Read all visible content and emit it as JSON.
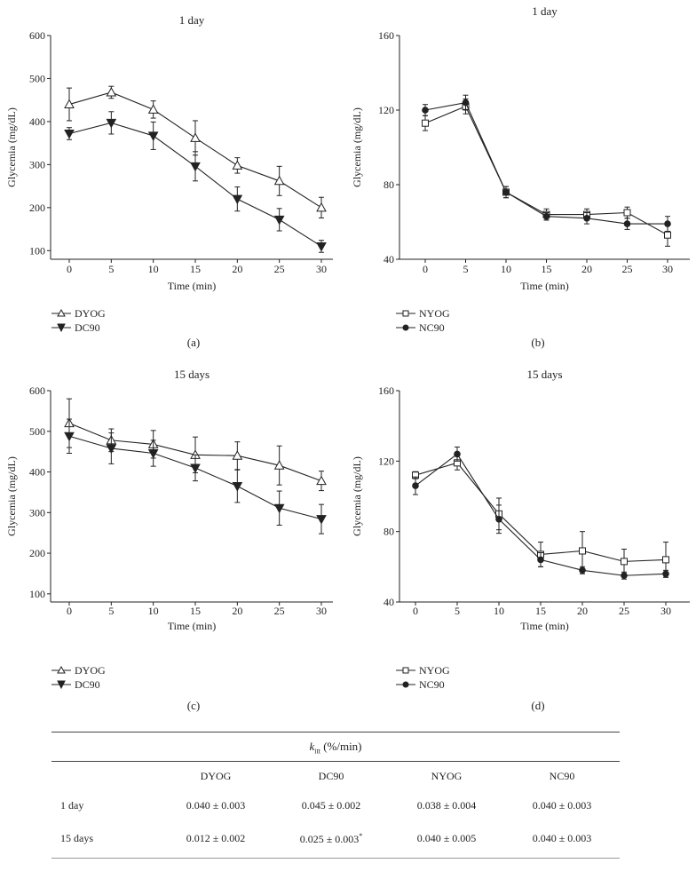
{
  "charts": [
    {
      "id": "a",
      "panel_label": "(a)",
      "chart_data": {
        "type": "line",
        "title": "1 day",
        "xlabel": "Time (min)",
        "ylabel": "Glycemia (mg/dL)",
        "x": [
          0,
          5,
          10,
          15,
          20,
          25,
          30
        ],
        "xticks": [
          "0",
          "5",
          "10",
          "15",
          "20",
          "25",
          "30"
        ],
        "ylim": [
          80,
          600
        ],
        "yticks": [
          100,
          200,
          300,
          400,
          500,
          600
        ],
        "ytick_labels": [
          "100",
          "200",
          "300",
          "400",
          "500",
          "600"
        ],
        "series": [
          {
            "name": "DYOG",
            "marker": "open-triangle",
            "values": [
              440,
              468,
              428,
              362,
              298,
              262,
              200
            ],
            "errors": [
              38,
              14,
              20,
              40,
              18,
              34,
              24
            ]
          },
          {
            "name": "DC90",
            "marker": "filled-down-triangle",
            "values": [
              372,
              397,
              367,
              296,
              220,
              172,
              110
            ],
            "errors": [
              14,
              26,
              32,
              34,
              28,
              26,
              14
            ]
          }
        ]
      }
    },
    {
      "id": "b",
      "panel_label": "(b)",
      "chart_data": {
        "type": "line",
        "title": "1 day",
        "xlabel": "Time (min)",
        "ylabel": "Glycemia (mg/dL)",
        "x": [
          0,
          5,
          10,
          15,
          20,
          25,
          30
        ],
        "xticks": [
          "0",
          "5",
          "10",
          "15",
          "20",
          "25",
          "30"
        ],
        "ylim": [
          40,
          160
        ],
        "yticks": [
          40,
          80,
          120,
          160
        ],
        "ytick_labels": [
          "40",
          "80",
          "120",
          "160"
        ],
        "series": [
          {
            "name": "NYOG",
            "marker": "open-square",
            "values": [
              113,
              122,
              76,
              64,
              64,
              65,
              53
            ],
            "errors": [
              4,
              4,
              3,
              3,
              3,
              3,
              6
            ]
          },
          {
            "name": "NC90",
            "marker": "filled-circle",
            "values": [
              120,
              124,
              76,
              63,
              62,
              59,
              59
            ],
            "errors": [
              3,
              4,
              3,
              2,
              3,
              3,
              4
            ]
          }
        ]
      }
    },
    {
      "id": "c",
      "panel_label": "(c)",
      "chart_data": {
        "type": "line",
        "title": "15 days",
        "xlabel": "Time (min)",
        "ylabel": "Glycemia (mg/dL)",
        "x": [
          0,
          5,
          10,
          15,
          20,
          25,
          30
        ],
        "xticks": [
          "0",
          "5",
          "10",
          "15",
          "20",
          "25",
          "30"
        ],
        "ylim": [
          80,
          600
        ],
        "yticks": [
          100,
          200,
          300,
          400,
          500,
          600
        ],
        "ytick_labels": [
          "100",
          "200",
          "300",
          "400",
          "500",
          "600"
        ],
        "series": [
          {
            "name": "DYOG",
            "marker": "open-triangle",
            "values": [
              520,
              478,
              468,
              442,
              440,
              416,
              378
            ],
            "errors": [
              60,
              28,
              34,
              44,
              34,
              48,
              24
            ]
          },
          {
            "name": "DC90",
            "marker": "filled-down-triangle",
            "values": [
              488,
              458,
              446,
              410,
              365,
              311,
              284
            ],
            "errors": [
              42,
              38,
              32,
              32,
              40,
              42,
              36
            ]
          }
        ]
      }
    },
    {
      "id": "d",
      "panel_label": "(d)",
      "chart_data": {
        "type": "line",
        "title": "15 days",
        "xlabel": "Time (min)",
        "ylabel": "Glycemia (mg/dL)",
        "x": [
          0,
          5,
          10,
          15,
          20,
          25,
          30
        ],
        "xticks": [
          "0",
          "5",
          "10",
          "15",
          "20",
          "25",
          "30"
        ],
        "ylim": [
          40,
          160
        ],
        "yticks": [
          40,
          80,
          120,
          160
        ],
        "ytick_labels": [
          "40",
          "80",
          "120",
          "160"
        ],
        "series": [
          {
            "name": "NYOG",
            "marker": "open-square",
            "values": [
              112,
              119,
              90,
              67,
              69,
              63,
              64
            ],
            "errors": [
              2,
              4,
              9,
              7,
              11,
              7,
              10
            ]
          },
          {
            "name": "NC90",
            "marker": "filled-circle",
            "values": [
              106,
              124,
              87,
              64,
              58,
              55,
              56
            ],
            "errors": [
              5,
              4,
              8,
              4,
              2,
              2,
              2
            ]
          }
        ]
      }
    }
  ],
  "table": {
    "title_var": "k",
    "title_sub": "itt",
    "title_unit": "(%/min)",
    "columns": [
      "",
      "DYOG",
      "DC90",
      "NYOG",
      "NC90"
    ],
    "rows": [
      {
        "label": "1 day",
        "cells": [
          "0.040 ± 0.003",
          "0.045 ± 0.002",
          "0.038 ± 0.004",
          "0.040 ± 0.003"
        ],
        "notes": [
          "",
          "",
          "",
          ""
        ]
      },
      {
        "label": "15 days",
        "cells": [
          "0.012 ± 0.002",
          "0.025 ± 0.003",
          "0.040 ± 0.005",
          "0.040 ± 0.003"
        ],
        "notes": [
          "",
          "*",
          "",
          ""
        ]
      }
    ]
  }
}
